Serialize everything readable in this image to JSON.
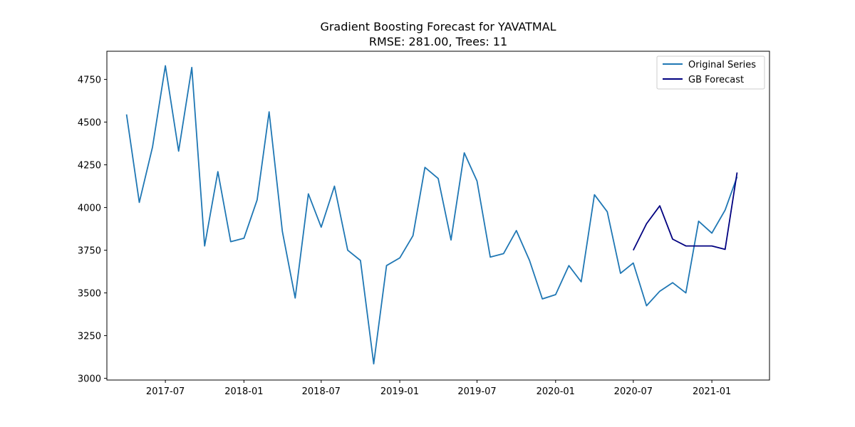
{
  "chart_data": {
    "type": "line",
    "title": "Gradient Boosting Forecast for YAVATMAL",
    "subtitle": "RMSE: 281.00, Trees: 11",
    "xlabel": "",
    "ylabel": "",
    "xlim": [
      "2017-02-14",
      "2021-05-16"
    ],
    "ylim": [
      2990,
      4915
    ],
    "x_ticks": [
      "2017-07",
      "2018-01",
      "2018-07",
      "2019-01",
      "2019-07",
      "2020-01",
      "2020-07",
      "2021-01"
    ],
    "y_ticks": [
      3000,
      3250,
      3500,
      3750,
      4000,
      4250,
      4500,
      4750
    ],
    "grid": false,
    "legend_position": "top-right",
    "series": [
      {
        "name": "Original Series",
        "color": "#1f77b4",
        "x": [
          "2017-04",
          "2017-05",
          "2017-06",
          "2017-07",
          "2017-08",
          "2017-09",
          "2017-10",
          "2017-11",
          "2017-12",
          "2018-01",
          "2018-02",
          "2018-03",
          "2018-04",
          "2018-05",
          "2018-06",
          "2018-07",
          "2018-08",
          "2018-09",
          "2018-10",
          "2018-11",
          "2018-12",
          "2019-01",
          "2019-02",
          "2019-03",
          "2019-04",
          "2019-05",
          "2019-06",
          "2019-07",
          "2019-08",
          "2019-09",
          "2019-10",
          "2019-11",
          "2019-12",
          "2020-01",
          "2020-02",
          "2020-03",
          "2020-04",
          "2020-05",
          "2020-06",
          "2020-07",
          "2020-08",
          "2020-09",
          "2020-10",
          "2020-11",
          "2020-12",
          "2021-01",
          "2021-02",
          "2021-03"
        ],
        "values": [
          4545,
          4030,
          4355,
          4830,
          4330,
          4820,
          3775,
          4210,
          3800,
          3820,
          4045,
          4560,
          3860,
          3470,
          4080,
          3885,
          4125,
          3750,
          3690,
          3085,
          3660,
          3705,
          3835,
          4235,
          4170,
          3810,
          4320,
          4155,
          3710,
          3730,
          3865,
          3690,
          3465,
          3490,
          3660,
          3565,
          4075,
          3975,
          3615,
          3675,
          3425,
          3510,
          3560,
          3500,
          3920,
          3850,
          3985,
          4180
        ]
      },
      {
        "name": "GB Forecast",
        "color": "#000080",
        "x": [
          "2020-07",
          "2020-08",
          "2020-09",
          "2020-10",
          "2020-11",
          "2020-12",
          "2021-01",
          "2021-02",
          "2021-03"
        ],
        "values": [
          3750,
          3905,
          4010,
          3815,
          3775,
          3775,
          3775,
          3755,
          4205
        ]
      }
    ]
  }
}
